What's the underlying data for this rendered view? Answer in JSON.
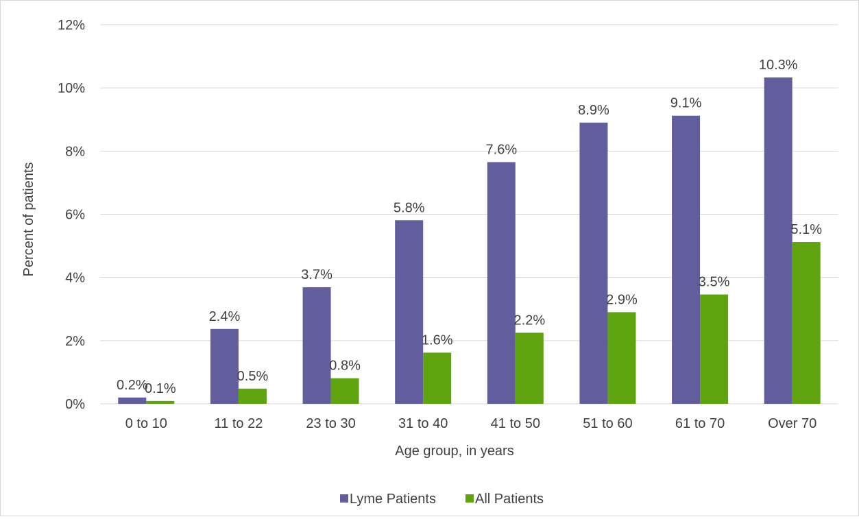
{
  "chart_data": {
    "type": "bar",
    "title": "",
    "xlabel": "Age group, in years",
    "ylabel": "Percent of patients",
    "categories": [
      "0 to 10",
      "11 to 22",
      "23 to 30",
      "31 to 40",
      "41 to 50",
      "51 to 60",
      "61 to 70",
      "Over 70"
    ],
    "series": [
      {
        "name": "Lyme Patients",
        "color": "#625d9c",
        "values": [
          0.2,
          2.37,
          3.69,
          5.81,
          7.65,
          8.9,
          9.12,
          10.33
        ],
        "labels": [
          "0.2%",
          "2.4%",
          "3.7%",
          "5.8%",
          "7.6%",
          "8.9%",
          "9.1%",
          "10.3%"
        ]
      },
      {
        "name": "All Patients",
        "color": "#5fa40f",
        "values": [
          0.09,
          0.48,
          0.81,
          1.62,
          2.25,
          2.9,
          3.46,
          5.12
        ],
        "labels": [
          "0.1%",
          "0.5%",
          "0.8%",
          "1.6%",
          "2.2%",
          "2.9%",
          "3.5%",
          "5.1%"
        ]
      }
    ],
    "yticks": [
      "0%",
      "2%",
      "4%",
      "6%",
      "8%",
      "10%",
      "12%"
    ],
    "ylim": [
      0,
      12
    ],
    "grid": true,
    "legend_position": "bottom"
  }
}
